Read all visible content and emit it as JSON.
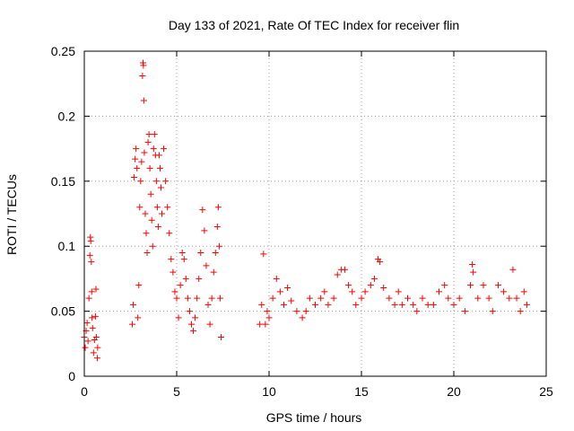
{
  "chart_data": {
    "type": "scatter",
    "title": "Day 133 of 2021, Rate Of TEC Index for receiver flin",
    "xlabel": "GPS time / hours",
    "ylabel": "ROTI / TECUs",
    "xlim": [
      0,
      25
    ],
    "ylim": [
      0,
      0.25
    ],
    "xticks": [
      0,
      5,
      10,
      15,
      20,
      25
    ],
    "xtick_labels": [
      "0",
      "5",
      "10",
      "15",
      "20",
      "25"
    ],
    "yticks": [
      0,
      0.05,
      0.1,
      0.15,
      0.2,
      0.25
    ],
    "ytick_labels": [
      "0",
      "0.05",
      "0.1",
      "0.15",
      "0.2",
      "0.25"
    ],
    "grid": true,
    "marker": "+",
    "series": [
      {
        "name": "ROTI",
        "color": "#ff0000",
        "points": [
          [
            0.0,
            0.03
          ],
          [
            0.05,
            0.022
          ],
          [
            0.1,
            0.035
          ],
          [
            0.15,
            0.041
          ],
          [
            0.2,
            0.027
          ],
          [
            0.25,
            0.06
          ],
          [
            0.3,
            0.093
          ],
          [
            0.33,
            0.107
          ],
          [
            0.35,
            0.104
          ],
          [
            0.38,
            0.088
          ],
          [
            0.4,
            0.065
          ],
          [
            0.42,
            0.045
          ],
          [
            0.45,
            0.037
          ],
          [
            0.5,
            0.018
          ],
          [
            0.55,
            0.028
          ],
          [
            0.6,
            0.046
          ],
          [
            0.63,
            0.067
          ],
          [
            0.65,
            0.03
          ],
          [
            0.7,
            0.014
          ],
          [
            0.72,
            0.022
          ],
          [
            2.6,
            0.04
          ],
          [
            2.65,
            0.055
          ],
          [
            2.7,
            0.153
          ],
          [
            2.75,
            0.167
          ],
          [
            2.8,
            0.175
          ],
          [
            2.85,
            0.16
          ],
          [
            2.9,
            0.045
          ],
          [
            2.95,
            0.07
          ],
          [
            3.0,
            0.13
          ],
          [
            3.05,
            0.15
          ],
          [
            3.1,
            0.165
          ],
          [
            3.15,
            0.231
          ],
          [
            3.18,
            0.241
          ],
          [
            3.2,
            0.239
          ],
          [
            3.22,
            0.212
          ],
          [
            3.25,
            0.172
          ],
          [
            3.3,
            0.125
          ],
          [
            3.35,
            0.11
          ],
          [
            3.4,
            0.095
          ],
          [
            3.45,
            0.18
          ],
          [
            3.5,
            0.186
          ],
          [
            3.55,
            0.16
          ],
          [
            3.6,
            0.14
          ],
          [
            3.65,
            0.12
          ],
          [
            3.7,
            0.1
          ],
          [
            3.75,
            0.175
          ],
          [
            3.8,
            0.186
          ],
          [
            3.85,
            0.17
          ],
          [
            3.9,
            0.15
          ],
          [
            3.95,
            0.13
          ],
          [
            4.0,
            0.115
          ],
          [
            4.05,
            0.17
          ],
          [
            4.1,
            0.16
          ],
          [
            4.15,
            0.145
          ],
          [
            4.2,
            0.125
          ],
          [
            4.3,
            0.175
          ],
          [
            4.4,
            0.15
          ],
          [
            4.5,
            0.13
          ],
          [
            4.6,
            0.11
          ],
          [
            4.7,
            0.09
          ],
          [
            4.8,
            0.08
          ],
          [
            4.9,
            0.065
          ],
          [
            5.0,
            0.06
          ],
          [
            5.1,
            0.045
          ],
          [
            5.2,
            0.07
          ],
          [
            5.3,
            0.095
          ],
          [
            5.4,
            0.09
          ],
          [
            5.5,
            0.075
          ],
          [
            5.6,
            0.06
          ],
          [
            5.7,
            0.05
          ],
          [
            5.8,
            0.04
          ],
          [
            5.9,
            0.035
          ],
          [
            6.0,
            0.045
          ],
          [
            6.1,
            0.06
          ],
          [
            6.2,
            0.075
          ],
          [
            6.3,
            0.095
          ],
          [
            6.4,
            0.128
          ],
          [
            6.5,
            0.112
          ],
          [
            6.6,
            0.085
          ],
          [
            6.7,
            0.055
          ],
          [
            6.8,
            0.04
          ],
          [
            6.9,
            0.06
          ],
          [
            7.0,
            0.08
          ],
          [
            7.1,
            0.095
          ],
          [
            7.2,
            0.115
          ],
          [
            7.25,
            0.13
          ],
          [
            7.3,
            0.1
          ],
          [
            7.35,
            0.06
          ],
          [
            7.4,
            0.03
          ],
          [
            9.5,
            0.04
          ],
          [
            9.6,
            0.055
          ],
          [
            9.7,
            0.094
          ],
          [
            9.8,
            0.04
          ],
          [
            9.9,
            0.05
          ],
          [
            10.0,
            0.045
          ],
          [
            10.2,
            0.06
          ],
          [
            10.4,
            0.075
          ],
          [
            10.6,
            0.065
          ],
          [
            10.8,
            0.055
          ],
          [
            11.0,
            0.068
          ],
          [
            11.2,
            0.058
          ],
          [
            11.5,
            0.05
          ],
          [
            11.8,
            0.045
          ],
          [
            12.0,
            0.05
          ],
          [
            12.2,
            0.06
          ],
          [
            12.5,
            0.055
          ],
          [
            12.8,
            0.06
          ],
          [
            13.0,
            0.065
          ],
          [
            13.2,
            0.055
          ],
          [
            13.5,
            0.06
          ],
          [
            13.7,
            0.078
          ],
          [
            13.9,
            0.082
          ],
          [
            14.1,
            0.082
          ],
          [
            14.3,
            0.07
          ],
          [
            14.5,
            0.065
          ],
          [
            14.7,
            0.055
          ],
          [
            15.0,
            0.06
          ],
          [
            15.2,
            0.065
          ],
          [
            15.5,
            0.07
          ],
          [
            15.7,
            0.075
          ],
          [
            15.9,
            0.09
          ],
          [
            16.0,
            0.088
          ],
          [
            16.2,
            0.068
          ],
          [
            16.5,
            0.06
          ],
          [
            16.8,
            0.055
          ],
          [
            17.0,
            0.065
          ],
          [
            17.2,
            0.055
          ],
          [
            17.5,
            0.06
          ],
          [
            17.8,
            0.055
          ],
          [
            18.0,
            0.05
          ],
          [
            18.3,
            0.06
          ],
          [
            18.6,
            0.055
          ],
          [
            18.9,
            0.055
          ],
          [
            19.2,
            0.065
          ],
          [
            19.5,
            0.07
          ],
          [
            19.7,
            0.06
          ],
          [
            20.0,
            0.055
          ],
          [
            20.3,
            0.06
          ],
          [
            20.6,
            0.05
          ],
          [
            20.9,
            0.07
          ],
          [
            21.0,
            0.086
          ],
          [
            21.05,
            0.08
          ],
          [
            21.3,
            0.06
          ],
          [
            21.6,
            0.07
          ],
          [
            21.9,
            0.06
          ],
          [
            22.1,
            0.05
          ],
          [
            22.4,
            0.07
          ],
          [
            22.7,
            0.065
          ],
          [
            23.0,
            0.06
          ],
          [
            23.2,
            0.082
          ],
          [
            23.4,
            0.06
          ],
          [
            23.6,
            0.05
          ],
          [
            23.8,
            0.065
          ],
          [
            23.95,
            0.055
          ]
        ]
      }
    ]
  }
}
